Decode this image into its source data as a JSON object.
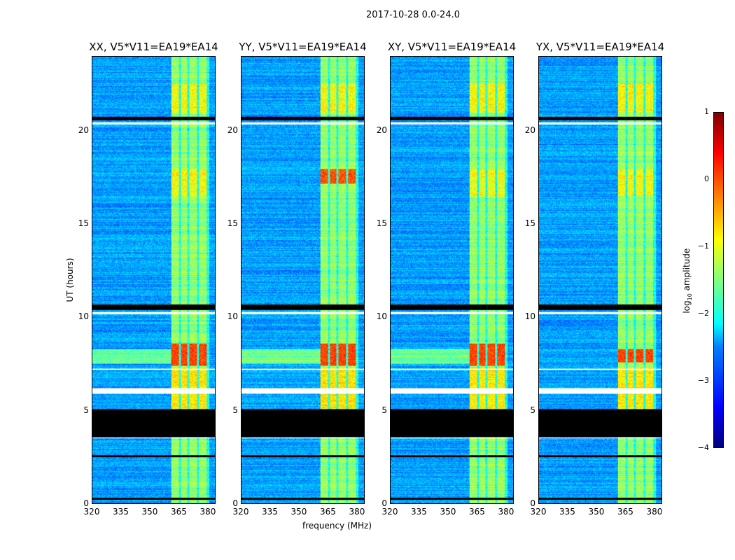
{
  "chart_data": {
    "type": "heatmap",
    "title": "2017-10-28 0.0-24.0",
    "xlabel": "frequency (MHz)",
    "ylabel": "UT (hours)",
    "xlim": [
      320,
      384
    ],
    "ylim": [
      0,
      24
    ],
    "xticks": [
      "320",
      "335",
      "350",
      "365",
      "380"
    ],
    "yticks": [
      "0",
      "5",
      "10",
      "15",
      "20"
    ],
    "panels": [
      {
        "title": "XX, V5*V11=EA19*EA14",
        "strong_rfi_hours": [
          7.4,
          8.6
        ]
      },
      {
        "title": "YY, V5*V11=EA19*EA14",
        "strong_rfi_hours": [
          7.4,
          8.6
        ],
        "second_rfi_hours": [
          17.2,
          18.0
        ]
      },
      {
        "title": "XY, V5*V11=EA19*EA14",
        "strong_rfi_hours": [
          7.4,
          8.6
        ]
      },
      {
        "title": "YX, V5*V11=EA19*EA14",
        "strong_rfi_hours": [
          7.6,
          8.3
        ]
      }
    ],
    "rfi_channels_mhz": [
      [
        361,
        365
      ],
      [
        366,
        369.5
      ],
      [
        370.5,
        374.5
      ],
      [
        375.5,
        379.5
      ]
    ],
    "flagged_black_hours": [
      [
        3.6,
        5.1
      ],
      [
        10.4,
        10.7
      ],
      [
        0.2,
        0.3
      ],
      [
        2.5,
        2.6
      ],
      [
        20.6,
        20.8
      ]
    ],
    "flagged_white_hours": [
      [
        5.9,
        6.2
      ],
      [
        10.2,
        10.3
      ],
      [
        20.4,
        20.5
      ],
      [
        3.5,
        3.55
      ],
      [
        7.2,
        7.25
      ]
    ],
    "colorbar": {
      "label": "log10 amplitude",
      "label_main": "log",
      "label_sub": "10",
      "label_rest": " amplitude",
      "range": [
        -4,
        1
      ],
      "ticks": [
        "1",
        "0",
        "−1",
        "−2",
        "−3",
        "−4"
      ],
      "colormap": "jet"
    }
  }
}
